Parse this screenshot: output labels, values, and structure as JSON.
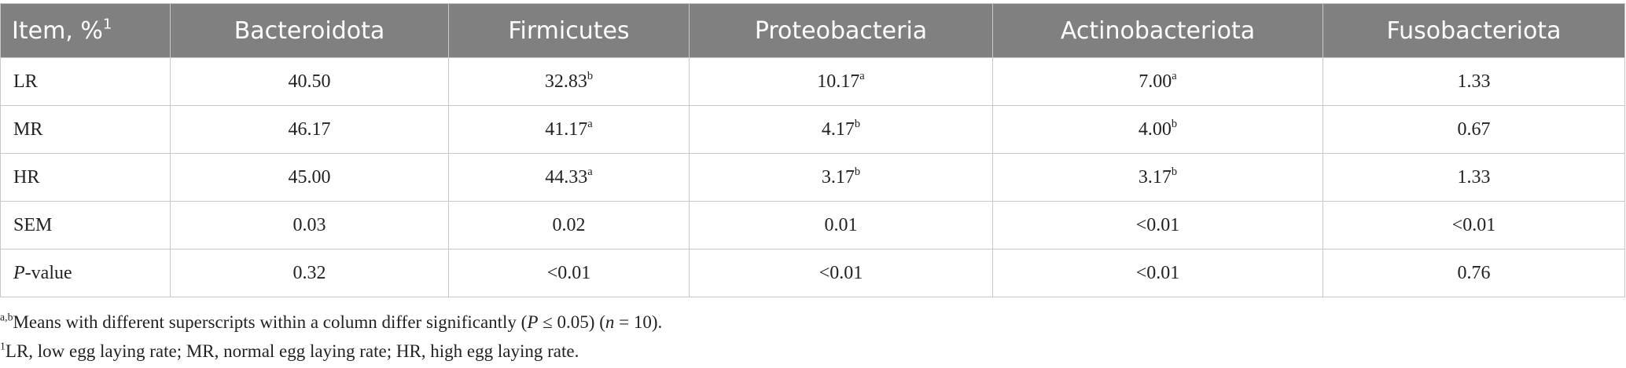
{
  "table": {
    "header": [
      [
        {
          "text": "Item, %"
        },
        {
          "sup": "1"
        }
      ],
      [
        {
          "text": "Bacteroidota"
        }
      ],
      [
        {
          "text": "Firmicutes"
        }
      ],
      [
        {
          "text": "Proteobacteria"
        }
      ],
      [
        {
          "text": "Actinobacteriota"
        }
      ],
      [
        {
          "text": "Fusobacteriota"
        }
      ]
    ],
    "rows": [
      [
        [
          {
            "text": "LR"
          }
        ],
        [
          {
            "text": "40.50"
          }
        ],
        [
          {
            "text": "32.83"
          },
          {
            "sup": "b"
          }
        ],
        [
          {
            "text": "10.17"
          },
          {
            "sup": "a"
          }
        ],
        [
          {
            "text": "7.00"
          },
          {
            "sup": "a"
          }
        ],
        [
          {
            "text": "1.33"
          }
        ]
      ],
      [
        [
          {
            "text": "MR"
          }
        ],
        [
          {
            "text": "46.17"
          }
        ],
        [
          {
            "text": "41.17"
          },
          {
            "sup": "a"
          }
        ],
        [
          {
            "text": "4.17"
          },
          {
            "sup": "b"
          }
        ],
        [
          {
            "text": "4.00"
          },
          {
            "sup": "b"
          }
        ],
        [
          {
            "text": "0.67"
          }
        ]
      ],
      [
        [
          {
            "text": "HR"
          }
        ],
        [
          {
            "text": "45.00"
          }
        ],
        [
          {
            "text": "44.33"
          },
          {
            "sup": "a"
          }
        ],
        [
          {
            "text": "3.17"
          },
          {
            "sup": "b"
          }
        ],
        [
          {
            "text": "3.17"
          },
          {
            "sup": "b"
          }
        ],
        [
          {
            "text": "1.33"
          }
        ]
      ],
      [
        [
          {
            "text": "SEM"
          }
        ],
        [
          {
            "text": "0.03"
          }
        ],
        [
          {
            "text": "0.02"
          }
        ],
        [
          {
            "text": "0.01"
          }
        ],
        [
          {
            "text": "<0.01"
          }
        ],
        [
          {
            "text": "<0.01"
          }
        ]
      ],
      [
        [
          {
            "italic": "P"
          },
          {
            "text": "-value"
          }
        ],
        [
          {
            "text": "0.32"
          }
        ],
        [
          {
            "text": "<0.01"
          }
        ],
        [
          {
            "text": "<0.01"
          }
        ],
        [
          {
            "text": "<0.01"
          }
        ],
        [
          {
            "text": "0.76"
          }
        ]
      ]
    ]
  },
  "footnotes": [
    [
      {
        "sup": "a,b"
      },
      {
        "text": "Means with different superscripts within a column differ significantly ("
      },
      {
        "italic": "P"
      },
      {
        "text": " ≤ 0.05) ("
      },
      {
        "italic": "n"
      },
      {
        "text": " = 10)."
      }
    ],
    [
      {
        "sup": "1"
      },
      {
        "text": "LR, low egg laying rate; MR, normal egg laying rate; HR, high egg laying rate."
      }
    ]
  ]
}
